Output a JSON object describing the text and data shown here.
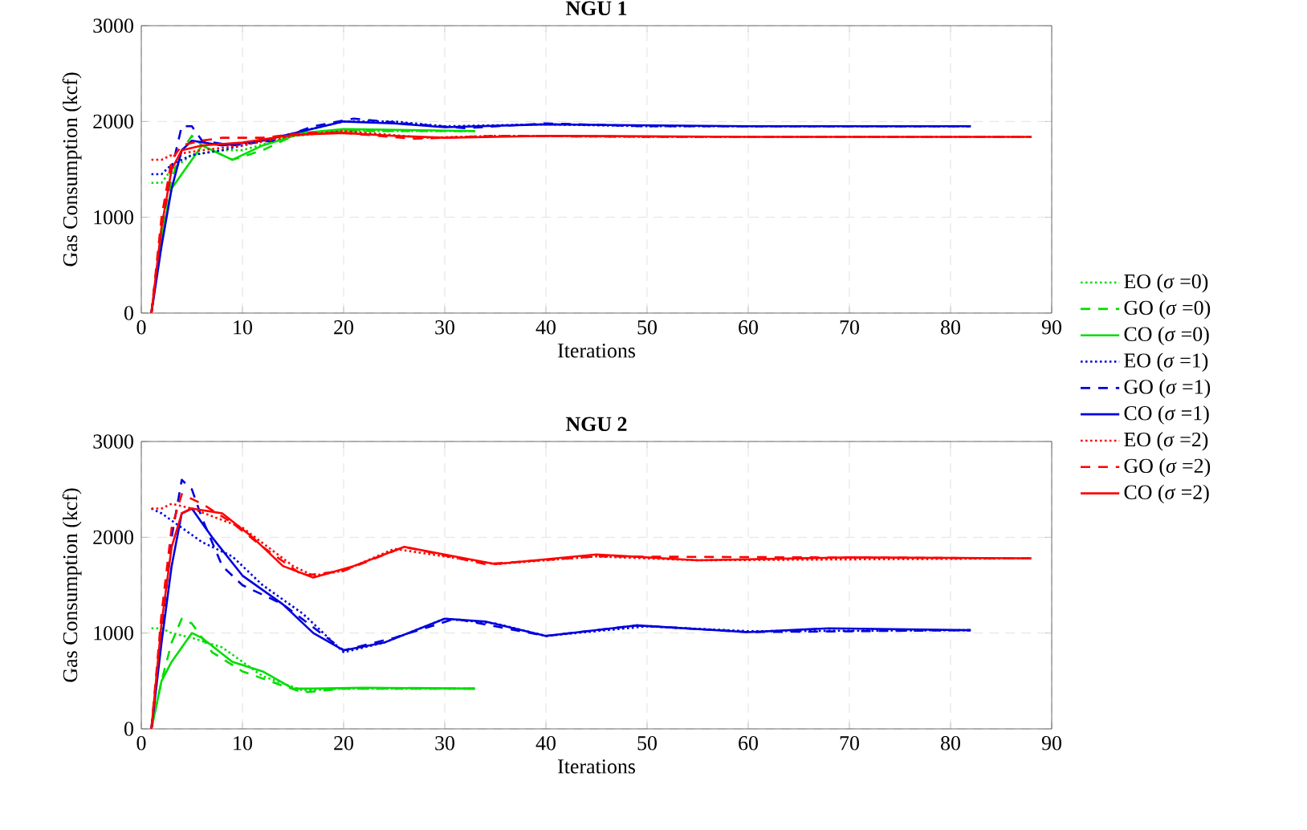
{
  "chart_data": [
    {
      "type": "line",
      "title": "NGU 1",
      "xlabel": "Iterations",
      "ylabel": "Gas Consumption (kcf)",
      "xlim": [
        0,
        90
      ],
      "ylim": [
        0,
        3000
      ],
      "xticks": [
        0,
        10,
        20,
        30,
        40,
        50,
        60,
        70,
        80,
        90
      ],
      "yticks": [
        0,
        1000,
        2000,
        3000
      ],
      "grid": true,
      "legend": "right",
      "series": [
        {
          "name": "EO (*σ* =0)",
          "color": "#00dd00",
          "line_style": "dotted",
          "x": [
            1,
            2,
            3,
            5,
            8,
            10,
            15,
            20,
            25,
            30,
            33
          ],
          "values": [
            1360,
            1360,
            1500,
            1650,
            1700,
            1700,
            1850,
            1900,
            1900,
            1900,
            1900
          ]
        },
        {
          "name": "GO (*σ* =0)",
          "color": "#00dd00",
          "line_style": "dashed",
          "x": [
            1,
            2,
            3,
            4,
            5,
            6,
            9,
            12,
            15,
            20,
            33
          ],
          "values": [
            0,
            900,
            1400,
            1700,
            1850,
            1750,
            1600,
            1700,
            1850,
            1900,
            1900
          ]
        },
        {
          "name": "CO (*σ* =0)",
          "color": "#00dd00",
          "line_style": "solid",
          "x": [
            1,
            2,
            3,
            5,
            6,
            9,
            12,
            16,
            20,
            33
          ],
          "values": [
            0,
            800,
            1300,
            1600,
            1750,
            1600,
            1750,
            1880,
            1920,
            1900
          ]
        },
        {
          "name": "EO (*σ* =1)",
          "color": "#0000dd",
          "line_style": "dotted",
          "x": [
            1,
            2,
            3,
            5,
            8,
            12,
            16,
            20,
            25,
            30,
            40,
            50,
            82
          ],
          "values": [
            1450,
            1450,
            1550,
            1650,
            1700,
            1800,
            1900,
            2000,
            2000,
            1950,
            1970,
            1950,
            1950
          ]
        },
        {
          "name": "GO (*σ* =1)",
          "color": "#0000dd",
          "line_style": "dashed",
          "x": [
            1,
            2,
            3,
            4,
            5,
            6,
            9,
            13,
            17,
            21,
            26,
            32,
            40,
            50,
            82
          ],
          "values": [
            0,
            900,
            1500,
            1950,
            1950,
            1800,
            1750,
            1800,
            1950,
            2030,
            1980,
            1930,
            1980,
            1950,
            1950
          ]
        },
        {
          "name": "CO (*σ* =1)",
          "color": "#0000dd",
          "line_style": "solid",
          "x": [
            1,
            2,
            3,
            4,
            5,
            8,
            12,
            16,
            20,
            25,
            30,
            40,
            60,
            82
          ],
          "values": [
            0,
            700,
            1300,
            1700,
            1800,
            1750,
            1800,
            1900,
            2000,
            1980,
            1940,
            1970,
            1950,
            1950
          ]
        },
        {
          "name": "EO (*σ* =2)",
          "color": "#ff0000",
          "line_style": "dotted",
          "x": [
            1,
            2,
            3,
            6,
            10,
            15,
            20,
            28,
            35,
            50,
            88
          ],
          "values": [
            1600,
            1600,
            1650,
            1700,
            1750,
            1850,
            1900,
            1830,
            1850,
            1840,
            1840
          ]
        },
        {
          "name": "GO (*σ* =2)",
          "color": "#ff0000",
          "line_style": "dashed",
          "x": [
            1,
            2,
            3,
            4,
            6,
            8,
            12,
            16,
            20,
            27,
            35,
            50,
            88
          ],
          "values": [
            0,
            1000,
            1600,
            1750,
            1800,
            1830,
            1830,
            1880,
            1880,
            1820,
            1850,
            1840,
            1840
          ]
        },
        {
          "name": "CO (*σ* =2)",
          "color": "#ff0000",
          "line_style": "solid",
          "x": [
            1,
            2,
            3,
            4,
            6,
            10,
            15,
            20,
            25,
            30,
            40,
            60,
            88
          ],
          "values": [
            0,
            900,
            1500,
            1700,
            1750,
            1780,
            1860,
            1880,
            1850,
            1830,
            1850,
            1840,
            1840
          ]
        }
      ]
    },
    {
      "type": "line",
      "title": "NGU 2",
      "xlabel": "Iterations",
      "ylabel": "Gas Consumption (kcf)",
      "xlim": [
        0,
        90
      ],
      "ylim": [
        0,
        3000
      ],
      "xticks": [
        0,
        10,
        20,
        30,
        40,
        50,
        60,
        70,
        80,
        90
      ],
      "yticks": [
        0,
        1000,
        2000,
        3000
      ],
      "grid": true,
      "series": [
        {
          "color": "#00dd00",
          "line_style": "dotted",
          "x": [
            1,
            2,
            3,
            5,
            8,
            12,
            16,
            20,
            33
          ],
          "values": [
            1050,
            1050,
            1000,
            950,
            850,
            550,
            400,
            420,
            420
          ]
        },
        {
          "color": "#00dd00",
          "line_style": "dashed",
          "x": [
            1,
            2,
            3,
            4,
            5,
            7,
            10,
            14,
            16,
            20,
            33
          ],
          "values": [
            0,
            500,
            900,
            1150,
            1100,
            800,
            600,
            450,
            380,
            420,
            420
          ]
        },
        {
          "color": "#00dd00",
          "line_style": "solid",
          "x": [
            1,
            2,
            3,
            5,
            6,
            9,
            12,
            15,
            17,
            22,
            33
          ],
          "values": [
            0,
            500,
            700,
            1000,
            950,
            700,
            600,
            420,
            420,
            430,
            420
          ]
        },
        {
          "color": "#0000dd",
          "line_style": "dotted",
          "x": [
            1,
            2,
            4,
            6,
            9,
            12,
            16,
            20,
            24,
            30,
            35,
            40,
            50,
            60,
            82
          ],
          "values": [
            2300,
            2250,
            2100,
            1950,
            1800,
            1500,
            1200,
            800,
            900,
            1150,
            1100,
            970,
            1070,
            1020,
            1030
          ]
        },
        {
          "color": "#0000dd",
          "line_style": "dashed",
          "x": [
            1,
            2,
            3,
            4,
            5,
            6,
            8,
            10,
            14,
            20,
            25,
            31,
            40,
            49,
            60,
            82
          ],
          "values": [
            0,
            1000,
            2000,
            2600,
            2500,
            2200,
            1700,
            1500,
            1300,
            820,
            950,
            1150,
            970,
            1080,
            1010,
            1030
          ]
        },
        {
          "color": "#0000dd",
          "line_style": "solid",
          "x": [
            1,
            2,
            3,
            4,
            5,
            7,
            10,
            14,
            17,
            20,
            24,
            30,
            34,
            40,
            49,
            60,
            68,
            82
          ],
          "values": [
            0,
            900,
            1700,
            2250,
            2300,
            2000,
            1600,
            1300,
            1000,
            820,
            900,
            1150,
            1120,
            970,
            1080,
            1010,
            1050,
            1030
          ]
        },
        {
          "color": "#ff0000",
          "line_style": "dotted",
          "x": [
            1,
            2,
            3,
            5,
            10,
            15,
            17,
            20,
            25,
            30,
            35,
            45,
            55,
            88
          ],
          "values": [
            2300,
            2300,
            2350,
            2300,
            2100,
            1700,
            1600,
            1650,
            1880,
            1800,
            1720,
            1800,
            1760,
            1780
          ]
        },
        {
          "color": "#ff0000",
          "line_style": "dashed",
          "x": [
            1,
            2,
            3,
            4,
            5,
            6,
            9,
            12,
            16,
            20,
            26,
            34,
            45,
            88
          ],
          "values": [
            0,
            1200,
            2100,
            2450,
            2400,
            2350,
            2150,
            1900,
            1600,
            1650,
            1900,
            1720,
            1800,
            1780
          ]
        },
        {
          "color": "#ff0000",
          "line_style": "solid",
          "x": [
            1,
            2,
            3,
            4,
            5,
            8,
            11,
            14,
            17,
            21,
            26,
            31,
            35,
            45,
            55,
            70,
            88
          ],
          "values": [
            0,
            1100,
            1900,
            2250,
            2300,
            2250,
            2000,
            1700,
            1580,
            1700,
            1900,
            1800,
            1720,
            1820,
            1760,
            1790,
            1780
          ]
        }
      ]
    }
  ]
}
